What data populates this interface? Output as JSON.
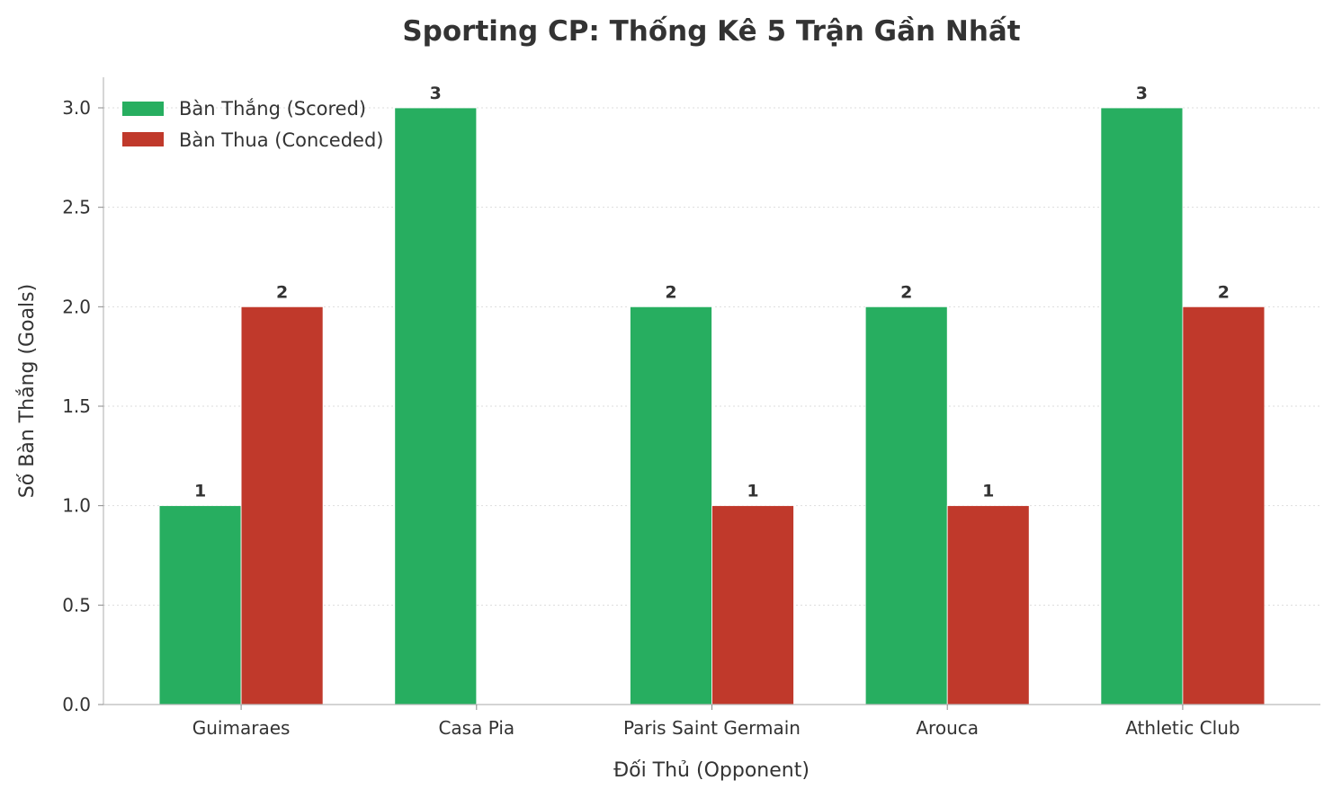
{
  "chart_data": {
    "type": "bar",
    "title": "Sporting CP: Thống Kê 5 Trận Gần Nhất",
    "xlabel": "Đối Thủ (Opponent)",
    "ylabel": "Số Bàn Thắng (Goals)",
    "categories": [
      "Guimaraes",
      "Casa Pia",
      "Paris Saint Germain",
      "Arouca",
      "Athletic Club"
    ],
    "series": [
      {
        "name": "Bàn Thắng (Scored)",
        "color": "#27ae60",
        "values": [
          1,
          3,
          2,
          2,
          3
        ]
      },
      {
        "name": "Bàn Thua (Conceded)",
        "color": "#c0392b",
        "values": [
          2,
          0,
          1,
          1,
          2
        ]
      }
    ],
    "ylim": [
      0,
      3.15
    ],
    "yticks": [
      "0.0",
      "0.5",
      "1.0",
      "1.5",
      "2.0",
      "2.5",
      "3.0"
    ],
    "grid": "horizontal dotted",
    "legend": "top-left"
  }
}
